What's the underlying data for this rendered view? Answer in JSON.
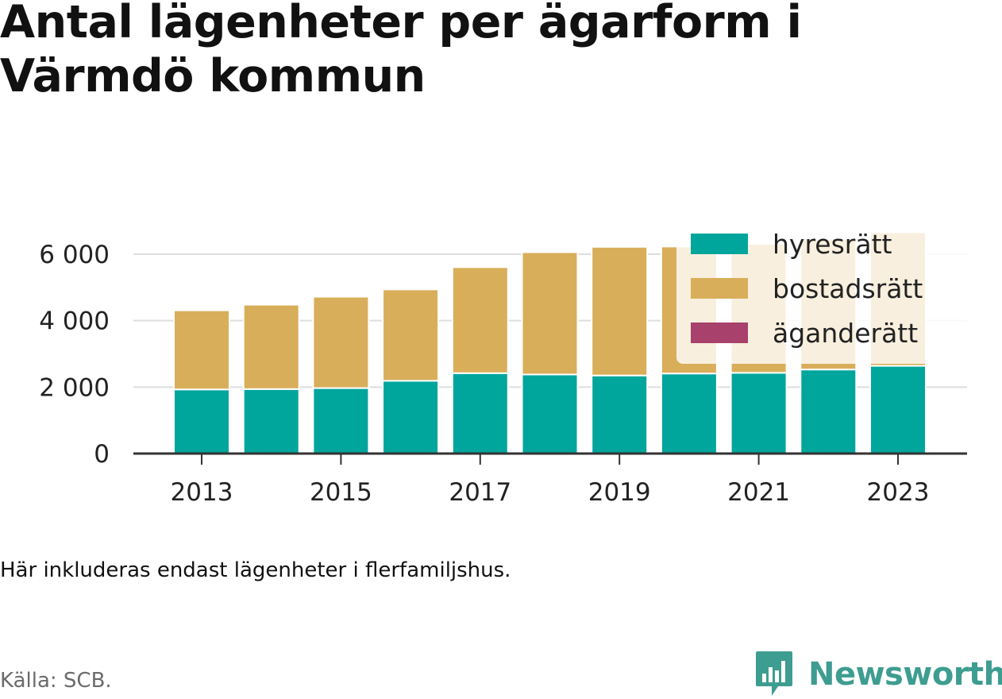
{
  "title": "Antal lägenheter per ägarform i Värmdö kommun",
  "note": "Här inkluderas endast lägenheter i flerfamiljshus.",
  "source": "Källa: SCB.",
  "brand": {
    "name": "Newsworthy",
    "logo_icon": "bar-chart-speech-bubble-icon",
    "color": "#3d9d90"
  },
  "chart_data": {
    "type": "bar",
    "stacked": true,
    "title": "Antal lägenheter per ägarform i Värmdö kommun",
    "xlabel": "",
    "ylabel": "",
    "categories": [
      "2013",
      "2014",
      "2015",
      "2016",
      "2017",
      "2018",
      "2019",
      "2020",
      "2021",
      "2022",
      "2023"
    ],
    "x_tick_labels": [
      "2013",
      "2015",
      "2017",
      "2019",
      "2021",
      "2023"
    ],
    "y_ticks": [
      0,
      2000,
      4000,
      6000
    ],
    "y_tick_labels": [
      "0",
      "2 000",
      "4 000",
      "6 000"
    ],
    "ylim": [
      0,
      6800
    ],
    "grid": true,
    "legend_position": "top-right",
    "series": [
      {
        "name": "hyresrätt",
        "color": "#00a59c",
        "values": [
          1930,
          1940,
          1970,
          2190,
          2420,
          2380,
          2350,
          2410,
          2430,
          2530,
          2640
        ]
      },
      {
        "name": "bostadsrätt",
        "color": "#d9ae5a",
        "values": [
          2380,
          2540,
          2750,
          2750,
          3190,
          3680,
          3870,
          3820,
          3880,
          3930,
          4020
        ]
      },
      {
        "name": "äganderätt",
        "color": "#a8416b",
        "values": [
          0,
          0,
          0,
          0,
          0,
          0,
          0,
          0,
          0,
          0,
          0
        ]
      }
    ]
  }
}
